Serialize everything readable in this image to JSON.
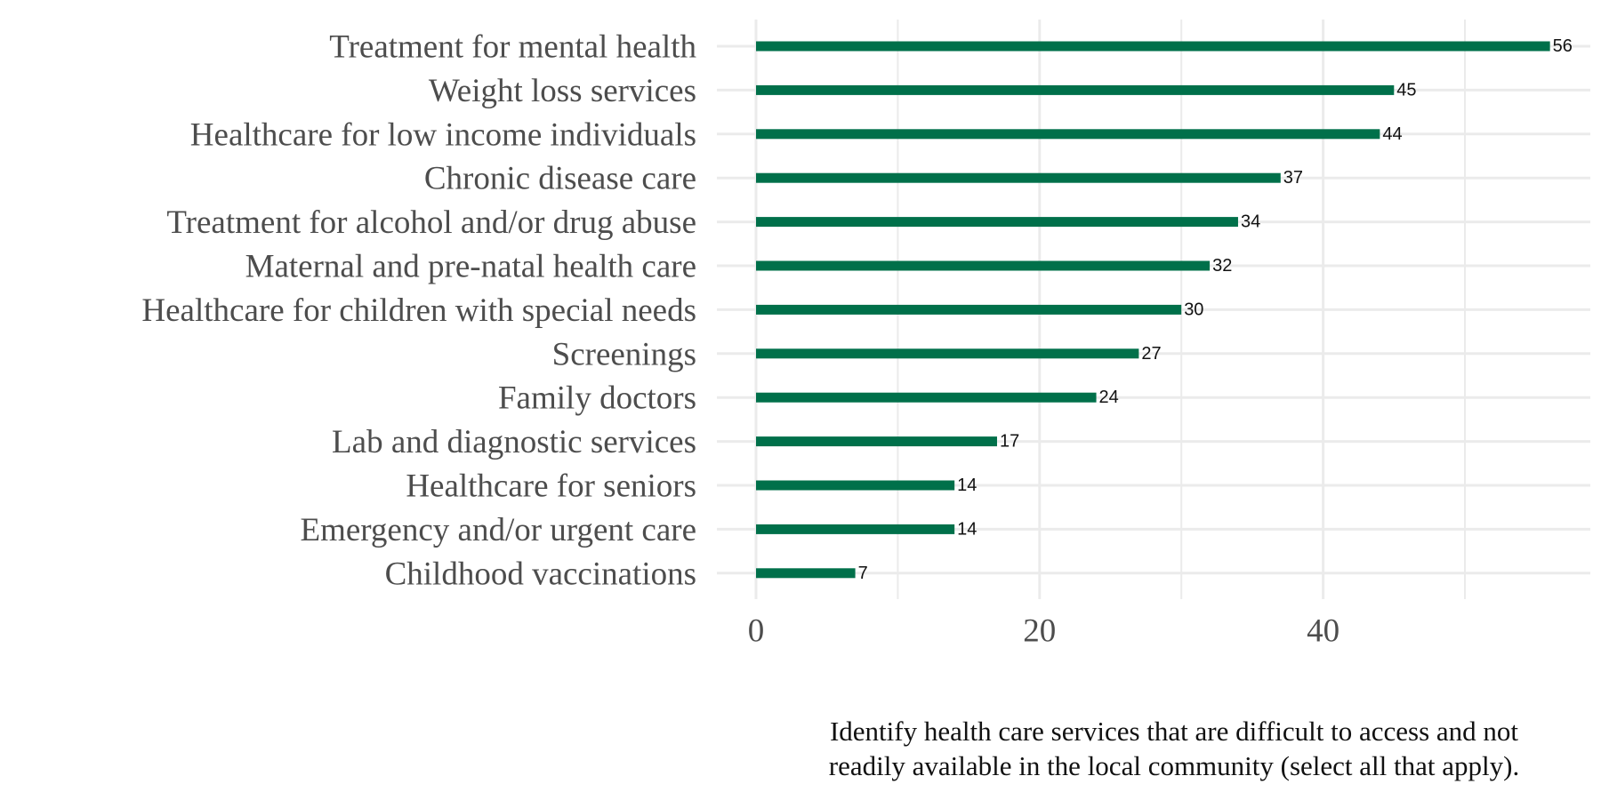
{
  "chart_data": {
    "type": "bar",
    "orientation": "horizontal",
    "categories": [
      "Treatment for mental health",
      "Weight loss services",
      "Healthcare for low income individuals",
      "Chronic disease care",
      "Treatment for alcohol and/or drug abuse",
      "Maternal and pre-natal health care",
      "Healthcare for children with special needs",
      "Screenings",
      "Family doctors",
      "Lab and diagnostic services",
      "Healthcare for seniors",
      "Emergency and/or urgent care",
      "Childhood vaccinations"
    ],
    "values": [
      56,
      45,
      44,
      37,
      34,
      32,
      30,
      27,
      24,
      17,
      14,
      14,
      7
    ],
    "value_labels": [
      "56",
      "45",
      "44",
      "37",
      "34",
      "32",
      "30",
      "27",
      "24",
      "17",
      "14",
      "14",
      "7"
    ],
    "xlim": [
      0,
      58
    ],
    "xticks": [
      0,
      20,
      40
    ],
    "xtick_labels": [
      "0",
      "20",
      "40"
    ],
    "minor_grid": [
      10,
      30,
      50
    ],
    "caption_lines": [
      "Identify health care services that are difficult to access and not",
      "readily available in the local community (select all that apply)."
    ],
    "grid": true,
    "bar_color": "#00704a",
    "grid_color": "#ebebeb"
  }
}
